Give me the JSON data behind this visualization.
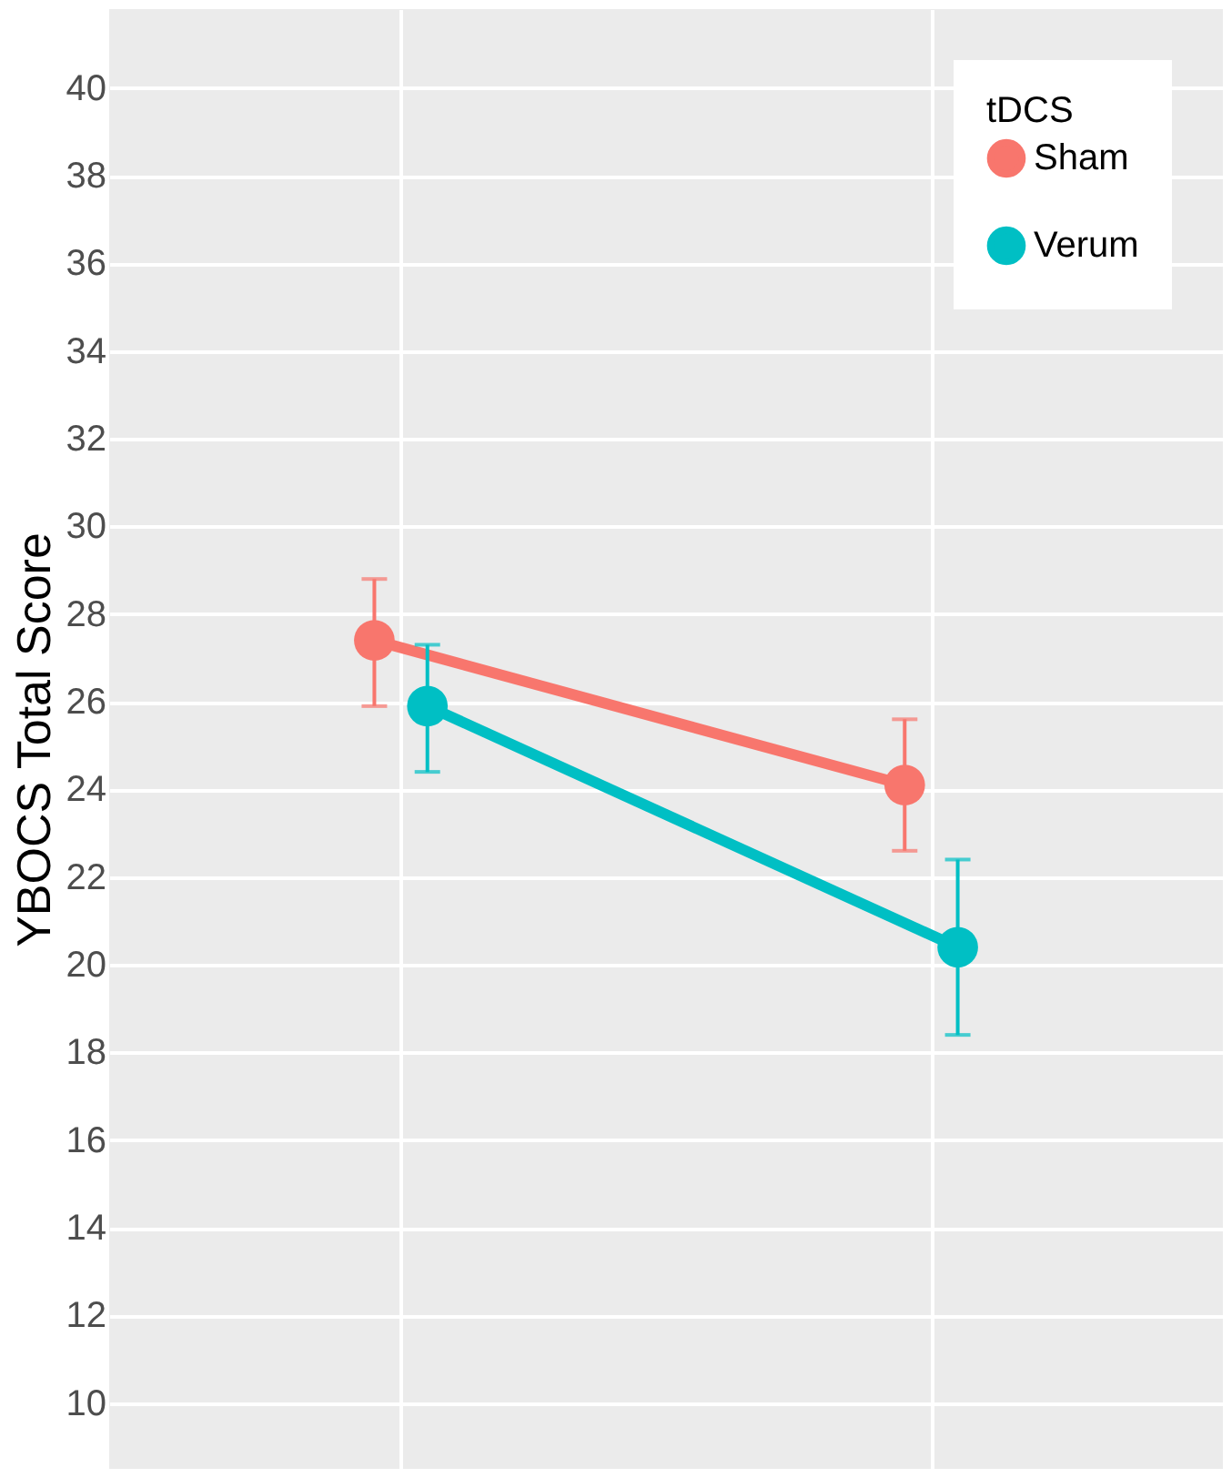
{
  "chart_data": {
    "type": "line",
    "ylabel": "YBOCS Total Score",
    "legend_title": "tDCS",
    "categories": [
      null,
      null
    ],
    "series": [
      {
        "name": "Sham",
        "color": "#f8766d",
        "values": [
          27.4,
          24.1
        ],
        "errors": [
          [
            25.9,
            28.8
          ],
          [
            22.6,
            25.6
          ]
        ]
      },
      {
        "name": "Verum",
        "color": "#00bfc4",
        "values": [
          25.9,
          20.4
        ],
        "errors": [
          [
            24.4,
            27.3
          ],
          [
            18.4,
            22.4
          ]
        ]
      }
    ],
    "ylim": [
      8.5,
      41.8
    ],
    "yticks": [
      10,
      12,
      14,
      16,
      18,
      20,
      22,
      24,
      26,
      28,
      30,
      32,
      34,
      36,
      38,
      40
    ],
    "grid": true,
    "legend": "top right",
    "marker": "circle",
    "line_style": "solid",
    "tick_labels": "y"
  }
}
